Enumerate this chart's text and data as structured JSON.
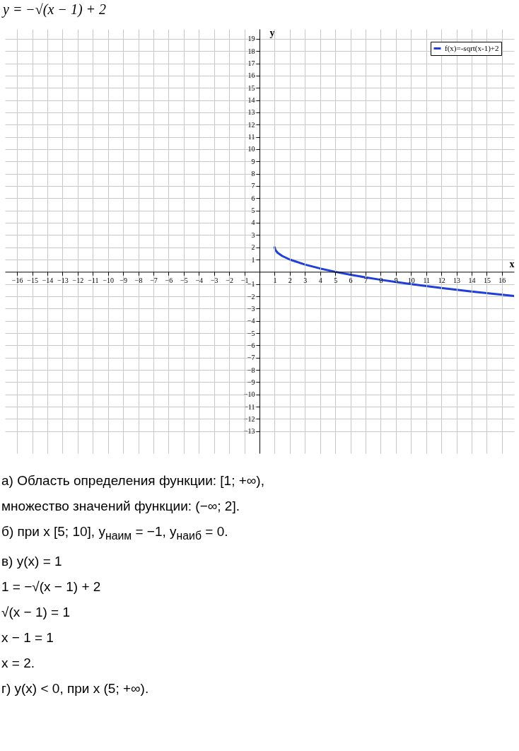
{
  "chart_data": {
    "type": "line",
    "title": "y = −√(x − 1) + 2",
    "xlabel": "x",
    "ylabel": "y",
    "xlim": [
      -16.8,
      16.8
    ],
    "ylim": [
      -14.8,
      19.8
    ],
    "xticks": [
      -16,
      -15,
      -14,
      -13,
      -12,
      -11,
      -10,
      -9,
      -8,
      -7,
      -6,
      -5,
      -4,
      -3,
      -2,
      -1,
      1,
      2,
      3,
      4,
      5,
      6,
      7,
      8,
      9,
      10,
      11,
      12,
      13,
      14,
      15,
      16
    ],
    "yticks": [
      -13,
      -12,
      -11,
      -10,
      -9,
      -8,
      -7,
      -6,
      -5,
      -4,
      -3,
      -2,
      -1,
      1,
      2,
      3,
      4,
      5,
      6,
      7,
      8,
      9,
      10,
      11,
      12,
      13,
      14,
      15,
      16,
      17,
      18,
      19
    ],
    "grid": true,
    "legend": "top right",
    "line_style": "solid",
    "series": [
      {
        "name": "f(x)=-sqrt(x-1)+2",
        "color": "#1f3fd8",
        "x": [
          1,
          1.05,
          1.2,
          1.5,
          2,
          3,
          4,
          5,
          6,
          7,
          8,
          9,
          10,
          11,
          12,
          13,
          14,
          15,
          16,
          16.8
        ],
        "values": [
          2,
          1.78,
          1.55,
          1.29,
          1,
          0.59,
          0.27,
          0,
          -0.24,
          -0.45,
          -0.65,
          -0.83,
          -1,
          -1.16,
          -1.32,
          -1.46,
          -1.61,
          -1.74,
          -1.87,
          -1.97
        ]
      }
    ],
    "annotations": [
      "а) Область определения функции: [1; +∞),",
      "множество значений функции: (−∞; 2].",
      "б) при x [5; 10],    y$_{наим}$ = −1,    y$_{наиб}$ = 0.",
      "в) y(x) = 1",
      "1 = −√(x − 1) + 2",
      "√(x − 1) = 1",
      "x − 1 = 1",
      "x = 2.",
      "г) y(x) < 0,    при x (5; +∞)."
    ]
  }
}
